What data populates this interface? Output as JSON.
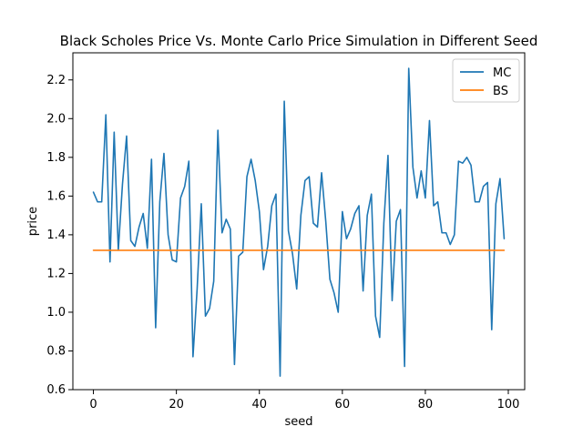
{
  "chart_data": {
    "type": "line",
    "title": "Black Scholes Price Vs. Monte Carlo Price Simulation in Different Seed",
    "xlabel": "seed",
    "ylabel": "price",
    "xlim": [
      -4.95,
      103.95
    ],
    "ylim": [
      0.6,
      2.34
    ],
    "xticks": [
      0,
      20,
      40,
      60,
      80,
      100
    ],
    "yticks": [
      0.6,
      0.8,
      1.0,
      1.2,
      1.4,
      1.6,
      1.8,
      2.0,
      2.2
    ],
    "xtick_labels": [
      "0",
      "20",
      "40",
      "60",
      "80",
      "100"
    ],
    "ytick_labels": [
      "0.6",
      "0.8",
      "1.0",
      "1.2",
      "1.4",
      "1.6",
      "1.8",
      "2.0",
      "2.2"
    ],
    "grid": false,
    "legend": "top-right",
    "series": [
      {
        "name": "MC",
        "color": "#1f77b4",
        "x": [
          0,
          1,
          2,
          3,
          4,
          5,
          6,
          7,
          8,
          9,
          10,
          11,
          12,
          13,
          14,
          15,
          16,
          17,
          18,
          19,
          20,
          21,
          22,
          23,
          24,
          25,
          26,
          27,
          28,
          29,
          30,
          31,
          32,
          33,
          34,
          35,
          36,
          37,
          38,
          39,
          40,
          41,
          42,
          43,
          44,
          45,
          46,
          47,
          48,
          49,
          50,
          51,
          52,
          53,
          54,
          55,
          56,
          57,
          58,
          59,
          60,
          61,
          62,
          63,
          64,
          65,
          66,
          67,
          68,
          69,
          70,
          71,
          72,
          73,
          74,
          75,
          76,
          77,
          78,
          79,
          80,
          81,
          82,
          83,
          84,
          85,
          86,
          87,
          88,
          89,
          90,
          91,
          92,
          93,
          94,
          95,
          96,
          97,
          98,
          99
        ],
        "values": [
          1.62,
          1.57,
          1.57,
          2.02,
          1.26,
          1.93,
          1.32,
          1.66,
          1.91,
          1.37,
          1.34,
          1.44,
          1.51,
          1.33,
          1.79,
          0.92,
          1.57,
          1.82,
          1.4,
          1.27,
          1.26,
          1.59,
          1.65,
          1.78,
          0.77,
          1.12,
          1.56,
          0.98,
          1.02,
          1.16,
          1.94,
          1.41,
          1.48,
          1.43,
          0.73,
          1.29,
          1.31,
          1.7,
          1.79,
          1.68,
          1.52,
          1.22,
          1.34,
          1.55,
          1.61,
          0.67,
          2.09,
          1.42,
          1.3,
          1.12,
          1.5,
          1.68,
          1.7,
          1.46,
          1.44,
          1.72,
          1.47,
          1.17,
          1.1,
          1.0,
          1.52,
          1.38,
          1.43,
          1.51,
          1.55,
          1.11,
          1.5,
          1.61,
          0.98,
          0.87,
          1.46,
          1.81,
          1.06,
          1.47,
          1.53,
          0.72,
          2.26,
          1.75,
          1.59,
          1.73,
          1.59,
          1.99,
          1.55,
          1.57,
          1.41,
          1.41,
          1.35,
          1.4,
          1.78,
          1.77,
          1.8,
          1.76,
          1.57,
          1.57,
          1.65,
          1.67,
          0.91,
          1.56,
          1.69,
          1.38
        ]
      },
      {
        "name": "BS",
        "color": "#ff7f0e",
        "x": [
          0,
          99
        ],
        "values": [
          1.32,
          1.32
        ]
      }
    ]
  }
}
